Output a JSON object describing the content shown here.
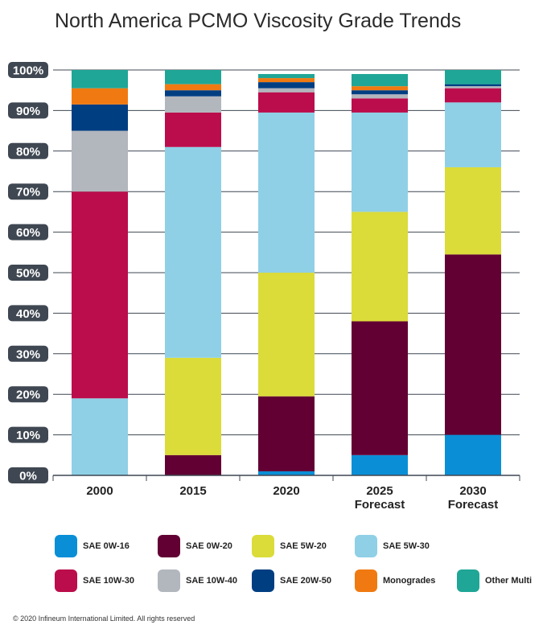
{
  "chart_data": {
    "type": "bar",
    "stacked": true,
    "title": "North America PCMO Viscosity Grade Trends",
    "xlabel": "",
    "ylabel": "",
    "ylim": [
      0,
      100
    ],
    "yticks": [
      "0%",
      "10%",
      "20%",
      "30%",
      "40%",
      "50%",
      "60%",
      "70%",
      "80%",
      "90%",
      "100%"
    ],
    "categories": [
      [
        "2000"
      ],
      [
        "2015"
      ],
      [
        "2020"
      ],
      [
        "2025",
        "Forecast"
      ],
      [
        "2030",
        "Forecast"
      ]
    ],
    "series": [
      {
        "name": "SAE 0W-16",
        "color": "#0a8fd6",
        "values": [
          0,
          0,
          1,
          5,
          10
        ]
      },
      {
        "name": "SAE 0W-20",
        "color": "#620033",
        "values": [
          0,
          5,
          18.5,
          33,
          44.5
        ]
      },
      {
        "name": "SAE 5W-20",
        "color": "#dbdb3a",
        "values": [
          0,
          24,
          30.5,
          27,
          21.5
        ]
      },
      {
        "name": "SAE 5W-30",
        "color": "#8fd0e6",
        "values": [
          19,
          52,
          39.5,
          24.5,
          16
        ]
      },
      {
        "name": "SAE 10W-30",
        "color": "#bb0d4b",
        "values": [
          51,
          8.5,
          5,
          3.5,
          3.5
        ]
      },
      {
        "name": "SAE 10W-40",
        "color": "#b2b6bd",
        "values": [
          15,
          4,
          1,
          1,
          0.5
        ]
      },
      {
        "name": "SAE 20W-50",
        "color": "#003e82",
        "values": [
          6.5,
          1.5,
          1.5,
          1,
          0.5
        ]
      },
      {
        "name": "Monogrades",
        "color": "#f07a11",
        "values": [
          4,
          1.5,
          1,
          1,
          0
        ]
      },
      {
        "name": "Other Multi",
        "color": "#1fa696",
        "values": [
          4.5,
          3.5,
          1,
          3,
          3.5
        ]
      }
    ],
    "legend_position": "bottom",
    "grid": true
  },
  "colors": {
    "tick_label_bg": "#3f4752",
    "tick_label_text": "#ffffff",
    "gridline": "#3f4752"
  },
  "copyright": "© 2020 Infineum International Limited. All rights reserved"
}
